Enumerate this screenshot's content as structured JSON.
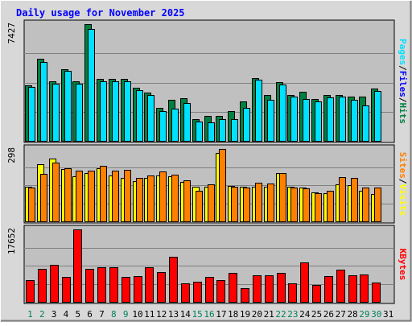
{
  "chart_data": {
    "type": "bar",
    "title": "Daily usage for November 2025",
    "categories": [
      "1",
      "2",
      "3",
      "4",
      "5",
      "6",
      "7",
      "8",
      "9",
      "10",
      "11",
      "12",
      "13",
      "14",
      "15",
      "16",
      "17",
      "18",
      "19",
      "20",
      "21",
      "22",
      "23",
      "24",
      "25",
      "26",
      "27",
      "28",
      "29",
      "30",
      "31"
    ],
    "weekend_days": [
      "1",
      "2",
      "8",
      "9",
      "15",
      "16",
      "22",
      "23",
      "29",
      "30"
    ],
    "panels": [
      {
        "id": "hits-files-pages",
        "max_label": "7427",
        "ylim": [
          0,
          7427
        ],
        "series": [
          {
            "name": "Hits",
            "color": "#008040",
            "values": [
              3550,
              5200,
              3800,
              4550,
              3800,
              7427,
              3960,
              3960,
              3960,
              3380,
              3050,
              2080,
              2600,
              2700,
              1380,
              1600,
              1600,
              1900,
              2500,
              4000,
              2900,
              3740,
              2900,
              3130,
              2680,
              2930,
              2930,
              2830,
              2830,
              3330,
              0
            ]
          },
          {
            "name": "Files",
            "color": "#0000ff",
            "values": [
              720,
              800,
              700,
              760,
              700,
              900,
              750,
              740,
              740,
              680,
              650,
              520,
              580,
              600,
              420,
              450,
              450,
              480,
              560,
              740,
              600,
              700,
              600,
              640,
              580,
              620,
              620,
              600,
              600,
              660,
              0
            ]
          },
          {
            "name": "Pages",
            "color": "#00e0ff",
            "values": [
              3450,
              5000,
              3650,
              4450,
              3650,
              7100,
              3800,
              3800,
              3800,
              3250,
              2900,
              1900,
              2050,
              2400,
              1240,
              1180,
              1400,
              1380,
              2080,
              3880,
              2600,
              3600,
              2800,
              2680,
              2520,
              2790,
              2800,
              2620,
              2240,
              3160,
              0
            ]
          }
        ]
      },
      {
        "id": "visits-sites",
        "max_label": "298",
        "ylim": [
          0,
          298
        ],
        "series": [
          {
            "name": "Visits",
            "color": "#ffff00",
            "values": [
              142,
              234,
              259,
              215,
              187,
              200,
              219,
              189,
              178,
              166,
              179,
              190,
              186,
              161,
              141,
              142,
              282,
              146,
              144,
              142,
              141,
              200,
              144,
              139,
              119,
              117,
              152,
              149,
              127,
              114,
              0
            ]
          },
          {
            "name": "Sites",
            "color": "#ff8000",
            "values": [
              140,
              195,
              243,
              219,
              207,
              209,
              229,
              209,
              211,
              180,
              189,
              205,
              193,
              170,
              127,
              151,
              298,
              143,
              139,
              158,
              156,
              198,
              139,
              136,
              115,
              125,
              181,
              179,
              139,
              140,
              0
            ]
          }
        ]
      },
      {
        "id": "kbytes",
        "max_label": "17652",
        "ylim": [
          0,
          17652
        ],
        "series": [
          {
            "name": "KBytes",
            "color": "#ff0000",
            "values": [
              5200,
              8000,
              9000,
              6000,
              17652,
              8000,
              8500,
              8500,
              6000,
              6200,
              8400,
              7200,
              11000,
              4500,
              5000,
              6000,
              5200,
              7000,
              3400,
              6500,
              6500,
              7000,
              4500,
              9600,
              4100,
              6300,
              7800,
              6500,
              6700,
              4800,
              0
            ]
          }
        ]
      }
    ],
    "labels": {
      "panel1_right": [
        {
          "text": "Pages",
          "color": "#00e0ff"
        },
        {
          "text": "/",
          "color": "#000000"
        },
        {
          "text": "Files",
          "color": "#0000ff"
        },
        {
          "text": "/",
          "color": "#000000"
        },
        {
          "text": "Hits",
          "color": "#008040"
        }
      ],
      "panel2_right": [
        {
          "text": "Sites",
          "color": "#ff8000"
        },
        {
          "text": "/",
          "color": "#000000"
        },
        {
          "text": "Visits",
          "color": "#ffff00"
        }
      ],
      "panel3_right": [
        {
          "text": "KBytes",
          "color": "#ff0000"
        }
      ]
    },
    "colors": {
      "title": "#0000ff",
      "weekday_label": "#000000",
      "weekend_label": "#00805c",
      "plot_background": "#c0c0c0",
      "frame_background": "#d8d8d8",
      "grid": "#808080"
    },
    "grid": true
  }
}
